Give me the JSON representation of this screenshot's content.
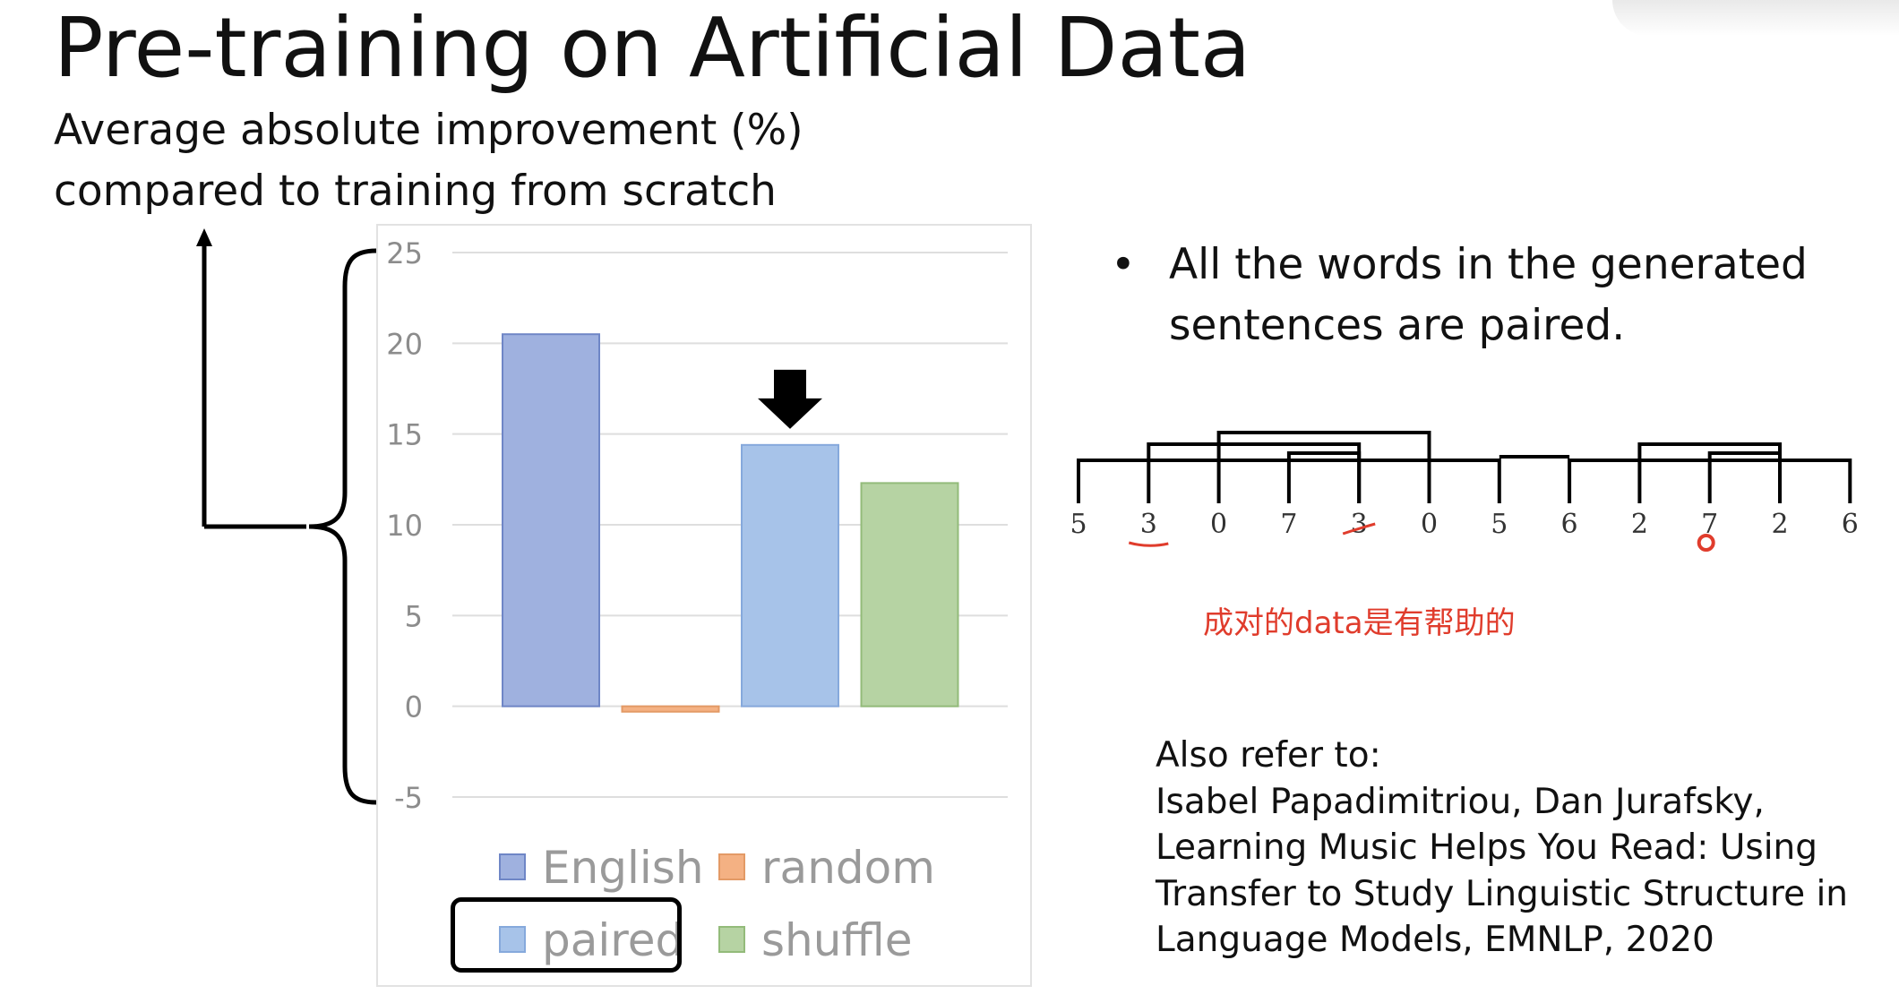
{
  "slide": {
    "title": "Pre-training on Artificial Data",
    "subtitle_line1": "Average absolute improvement (%)",
    "subtitle_line2": "compared to training from scratch"
  },
  "chart_data": {
    "type": "bar",
    "categories": [
      "English",
      "random",
      "paired",
      "shuffle"
    ],
    "values": [
      20.5,
      -0.3,
      14.4,
      12.3
    ],
    "colors": [
      "#9fb1df",
      "#f4b183",
      "#a7c3e9",
      "#b6d3a3"
    ],
    "ylim": [
      -5,
      25
    ],
    "yticks": [
      "25",
      "20",
      "15",
      "10",
      "5",
      "0",
      "-5"
    ],
    "ytick_values": [
      25,
      20,
      15,
      10,
      5,
      0,
      -5
    ],
    "grid": true,
    "legend": {
      "placement": "bottom",
      "entries": [
        "English",
        "random",
        "paired",
        "shuffle"
      ]
    },
    "highlighted": "paired"
  },
  "bullet": {
    "marker": "•",
    "line1": "All the words in the generated",
    "line2": "sentences are paired."
  },
  "sequence": {
    "tokens": [
      "5",
      "3",
      "0",
      "7",
      "3",
      "0",
      "5",
      "6",
      "2",
      "7",
      "2",
      "6"
    ]
  },
  "annotation_zh": "成对的data是有帮助的",
  "refs": {
    "line1": "Also refer to:",
    "line2": "Isabel Papadimitriou, Dan Jurafsky,",
    "line3": "Learning Music Helps You Read: Using",
    "line4": "Transfer to Study Linguistic Structure in",
    "line5": "Language Models, EMNLP, 2020"
  },
  "colors": {
    "annotation_red": "#e03c2c",
    "grid": "#dedede",
    "axis_text": "#8c8c8c"
  }
}
